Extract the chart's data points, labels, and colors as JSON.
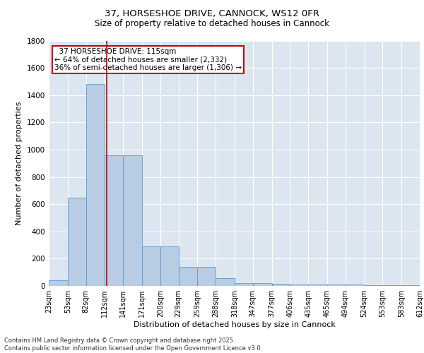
{
  "title1": "37, HORSESHOE DRIVE, CANNOCK, WS12 0FR",
  "title2": "Size of property relative to detached houses in Cannock",
  "xlabel": "Distribution of detached houses by size in Cannock",
  "ylabel": "Number of detached properties",
  "footer": "Contains HM Land Registry data © Crown copyright and database right 2025.\nContains public sector information licensed under the Open Government Licence v3.0.",
  "bin_edges": [
    23,
    53,
    82,
    112,
    141,
    171,
    200,
    229,
    259,
    288,
    318,
    347,
    377,
    406,
    435,
    465,
    494,
    524,
    553,
    583,
    612
  ],
  "bin_labels": [
    "23sqm",
    "53sqm",
    "82sqm",
    "112sqm",
    "141sqm",
    "171sqm",
    "200sqm",
    "229sqm",
    "259sqm",
    "288sqm",
    "318sqm",
    "347sqm",
    "377sqm",
    "406sqm",
    "435sqm",
    "465sqm",
    "494sqm",
    "524sqm",
    "553sqm",
    "583sqm",
    "612sqm"
  ],
  "counts": [
    40,
    650,
    1480,
    960,
    960,
    290,
    290,
    140,
    140,
    55,
    20,
    20,
    15,
    10,
    10,
    10,
    10,
    5,
    5,
    5,
    5
  ],
  "bar_color": "#b8cce4",
  "bar_edge_color": "#5b9bd5",
  "property_size": 115,
  "vline_color": "#cc0000",
  "annotation_line1": "  37 HORSESHOE DRIVE: 115sqm",
  "annotation_line2": "← 64% of detached houses are smaller (2,332)",
  "annotation_line3": "36% of semi-detached houses are larger (1,306) →",
  "annotation_box_color": "#ffffff",
  "annotation_box_edge": "#cc0000",
  "ylim": [
    0,
    1800
  ],
  "yticks": [
    0,
    200,
    400,
    600,
    800,
    1000,
    1200,
    1400,
    1600,
    1800
  ],
  "plot_bg_color": "#dce6f1",
  "grid_color": "#ffffff",
  "title1_fontsize": 9.5,
  "title2_fontsize": 8.5,
  "axis_label_fontsize": 8,
  "tick_fontsize": 7,
  "footer_fontsize": 6,
  "annot_fontsize": 7.5
}
